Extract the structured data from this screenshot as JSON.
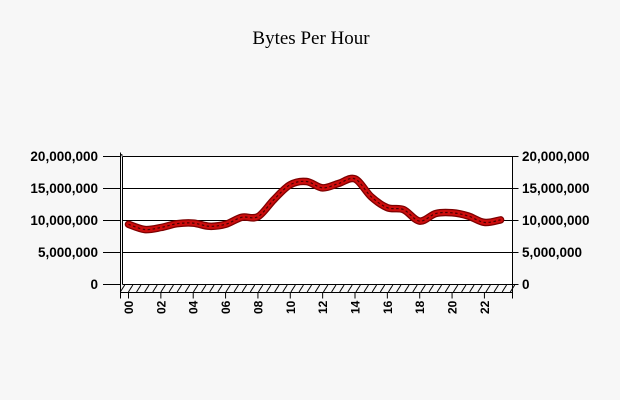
{
  "chart": {
    "title": "Bytes Per Hour"
  },
  "colors": {
    "background": "#f7f7f7",
    "plot_background": "#ffffff",
    "axis_and_grid": "#000000",
    "line_body": "#cc0c0c",
    "line_edge": "#7e0000",
    "line_core": "#4a0000",
    "label_text": "#000000"
  },
  "chart_data": {
    "type": "line",
    "title": "Bytes Per Hour",
    "xlabel": "",
    "ylabel": "",
    "grid": true,
    "legend": "none",
    "y_axes": [
      "left",
      "right"
    ],
    "ylim": [
      0,
      20000000
    ],
    "y_tick_values": [
      0,
      5000000,
      10000000,
      15000000,
      20000000
    ],
    "y_tick_labels_left": [
      "0",
      "5,000,000",
      "10,000,000",
      "15,000,000",
      "20,000,000"
    ],
    "y_tick_labels_right": [
      "0",
      "5,000,000",
      "10,000,000",
      "15,000,000",
      "20,000,000"
    ],
    "x_hours": [
      0,
      1,
      2,
      3,
      4,
      5,
      6,
      7,
      8,
      9,
      10,
      11,
      12,
      13,
      14,
      15,
      16,
      17,
      18,
      19,
      20,
      21,
      22,
      23
    ],
    "x_tick_labels": [
      "00",
      "02",
      "04",
      "06",
      "08",
      "10",
      "12",
      "14",
      "16",
      "18",
      "20",
      "22"
    ],
    "series": [
      {
        "name": "Bytes Per Hour",
        "color": "#cc0c0c",
        "values": [
          9400000,
          8600000,
          8900000,
          9500000,
          9600000,
          9100000,
          9400000,
          10500000,
          10600000,
          13300000,
          15600000,
          16100000,
          15100000,
          15800000,
          16500000,
          13700000,
          12000000,
          11700000,
          9900000,
          11100000,
          11200000,
          10700000,
          9700000,
          10100000
        ]
      }
    ]
  }
}
